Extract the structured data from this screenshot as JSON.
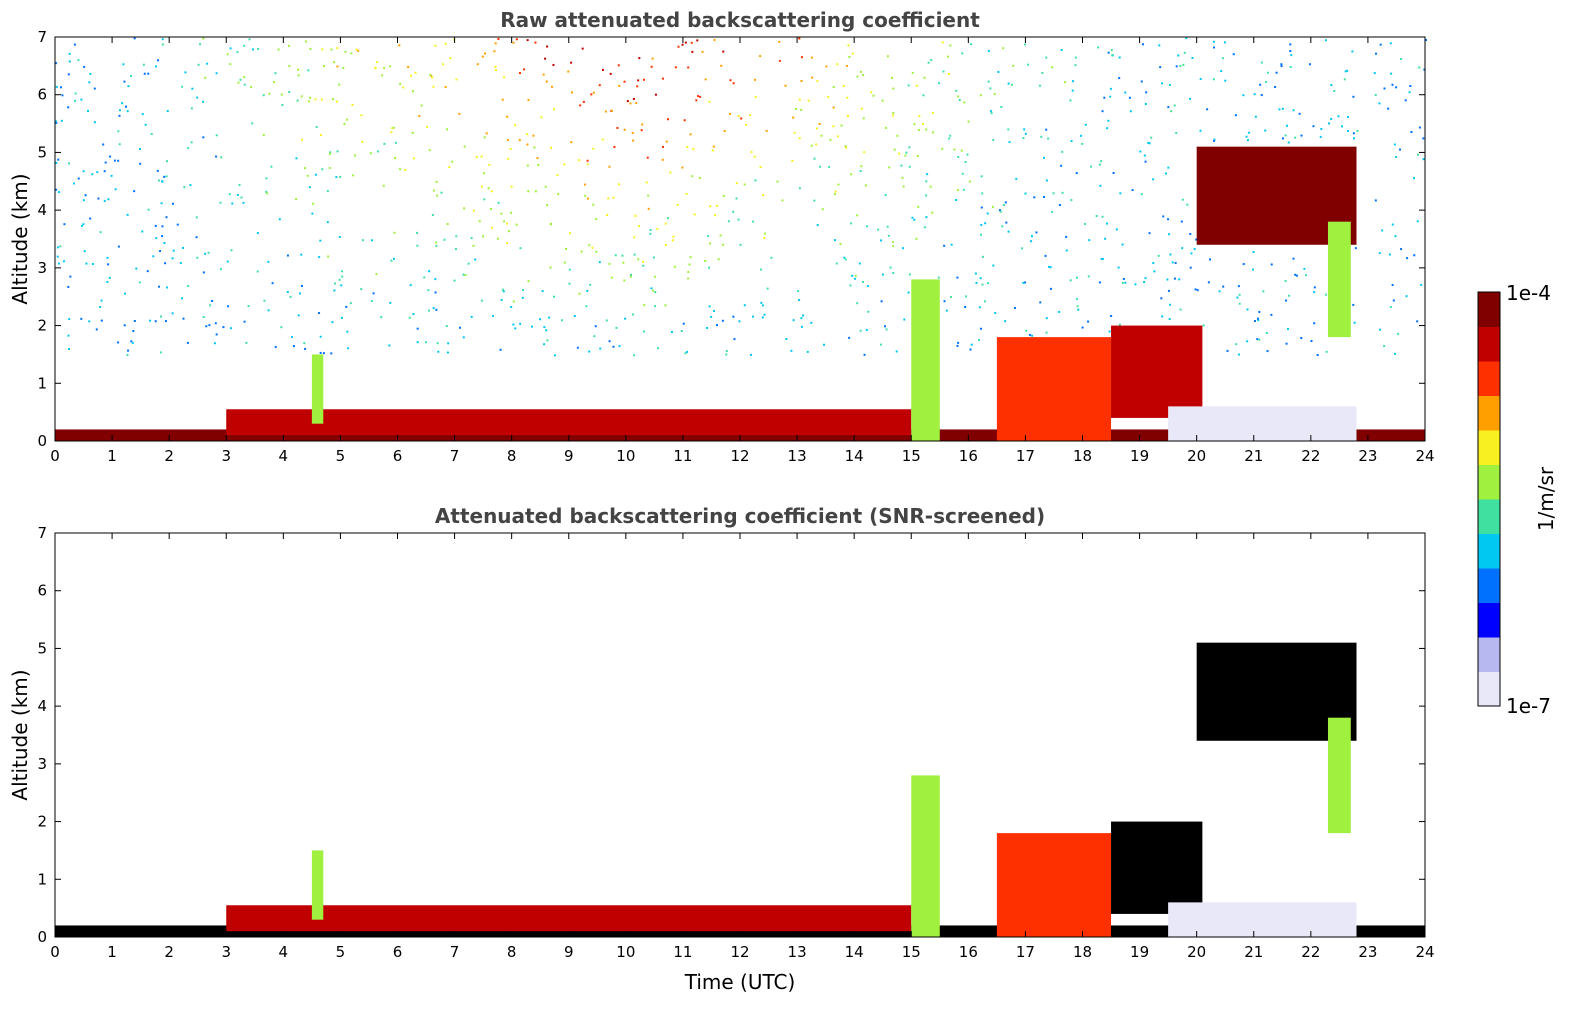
{
  "chart_data": [
    {
      "type": "heatmap",
      "title": "Raw attenuated backscattering coefficient",
      "xlabel": "",
      "ylabel": "Altitude (km)",
      "xlim": [
        0,
        24
      ],
      "ylim": [
        0,
        7
      ],
      "x_ticks": [
        0,
        1,
        2,
        3,
        4,
        5,
        6,
        7,
        8,
        9,
        10,
        11,
        12,
        13,
        14,
        15,
        16,
        17,
        18,
        19,
        20,
        21,
        22,
        23,
        24
      ],
      "y_ticks": [
        0,
        1,
        2,
        3,
        4,
        5,
        6,
        7
      ],
      "features": [
        {
          "name": "surface layer",
          "t0": 0,
          "t1": 24,
          "alt0": 0,
          "alt1": 0.2,
          "level": 0.97
        },
        {
          "name": "boundary layer top",
          "t0": 3,
          "t1": 15,
          "alt0": 0.1,
          "alt1": 0.55,
          "level": 0.85
        },
        {
          "name": "plume",
          "t0": 4.5,
          "t1": 4.7,
          "alt0": 0.3,
          "alt1": 1.5,
          "level": 0.55
        },
        {
          "name": "convective column",
          "t0": 15,
          "t1": 15.5,
          "alt0": 0,
          "alt1": 2.8,
          "level": 0.5
        },
        {
          "name": "cloud block",
          "t0": 16.5,
          "t1": 18.5,
          "alt0": 0,
          "alt1": 1.8,
          "level": 0.75
        },
        {
          "name": "cloud base",
          "t0": 18.5,
          "t1": 20.1,
          "alt0": 0.4,
          "alt1": 2.0,
          "level": 0.9
        },
        {
          "name": "low-signal layer",
          "t0": 19.5,
          "t1": 22.8,
          "alt0": 0,
          "alt1": 0.6,
          "level": 0.08
        },
        {
          "name": "mid-level cloud",
          "t0": 20,
          "t1": 22.8,
          "alt0": 3.4,
          "alt1": 5.1,
          "level": 0.95
        },
        {
          "name": "fall streak",
          "t0": 22.3,
          "t1": 22.7,
          "alt0": 1.8,
          "alt1": 3.8,
          "level": 0.5
        }
      ]
    },
    {
      "type": "heatmap",
      "title": "Attenuated backscattering coefficient (SNR-screened)",
      "xlabel": "Time (UTC)",
      "ylabel": "Altitude (km)",
      "xlim": [
        0,
        24
      ],
      "ylim": [
        0,
        7
      ],
      "x_ticks": [
        0,
        1,
        2,
        3,
        4,
        5,
        6,
        7,
        8,
        9,
        10,
        11,
        12,
        13,
        14,
        15,
        16,
        17,
        18,
        19,
        20,
        21,
        22,
        23,
        24
      ],
      "y_ticks": [
        0,
        1,
        2,
        3,
        4,
        5,
        6,
        7
      ],
      "features": [
        {
          "name": "surface layer",
          "t0": 0,
          "t1": 24,
          "alt0": 0,
          "alt1": 0.2,
          "level": 1.0
        },
        {
          "name": "boundary layer top",
          "t0": 3,
          "t1": 15,
          "alt0": 0.1,
          "alt1": 0.55,
          "level": 0.9
        },
        {
          "name": "plume",
          "t0": 4.5,
          "t1": 4.7,
          "alt0": 0.3,
          "alt1": 1.5,
          "level": 0.55
        },
        {
          "name": "convective column",
          "t0": 15,
          "t1": 15.5,
          "alt0": 0,
          "alt1": 2.8,
          "level": 0.5
        },
        {
          "name": "cloud block",
          "t0": 16.5,
          "t1": 18.5,
          "alt0": 0,
          "alt1": 1.8,
          "level": 0.75
        },
        {
          "name": "cloud base",
          "t0": 18.5,
          "t1": 20.1,
          "alt0": 0.4,
          "alt1": 2.0,
          "level": 1.0
        },
        {
          "name": "low-signal layer",
          "t0": 19.5,
          "t1": 22.8,
          "alt0": 0,
          "alt1": 0.6,
          "level": 0.08
        },
        {
          "name": "mid-level cloud",
          "t0": 20,
          "t1": 22.8,
          "alt0": 3.4,
          "alt1": 5.1,
          "level": 1.0
        },
        {
          "name": "fall streak",
          "t0": 22.3,
          "t1": 22.7,
          "alt0": 1.8,
          "alt1": 3.8,
          "level": 0.5
        }
      ]
    }
  ],
  "colorbar": {
    "min_label": "1e-7",
    "max_label": "1e-4",
    "unit_label": "1/m/sr",
    "colors": [
      "#e8e8f8",
      "#b8b8f0",
      "#0000ff",
      "#0070ff",
      "#00c8f0",
      "#40e0a0",
      "#a0f040",
      "#f8f020",
      "#ffa000",
      "#ff3000",
      "#c00000",
      "#800000"
    ]
  }
}
